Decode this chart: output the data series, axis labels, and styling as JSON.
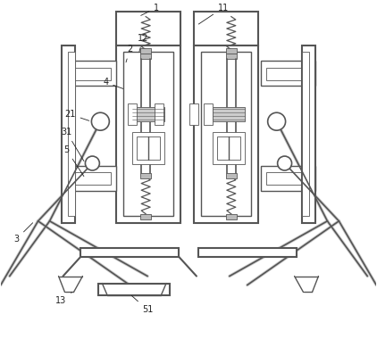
{
  "bg_color": "#ffffff",
  "lc": "#555555",
  "lw_outer": 1.5,
  "lw_mid": 1.0,
  "lw_thin": 0.6,
  "lw_arm": 2.5,
  "fig_w": 4.22,
  "fig_h": 3.8
}
